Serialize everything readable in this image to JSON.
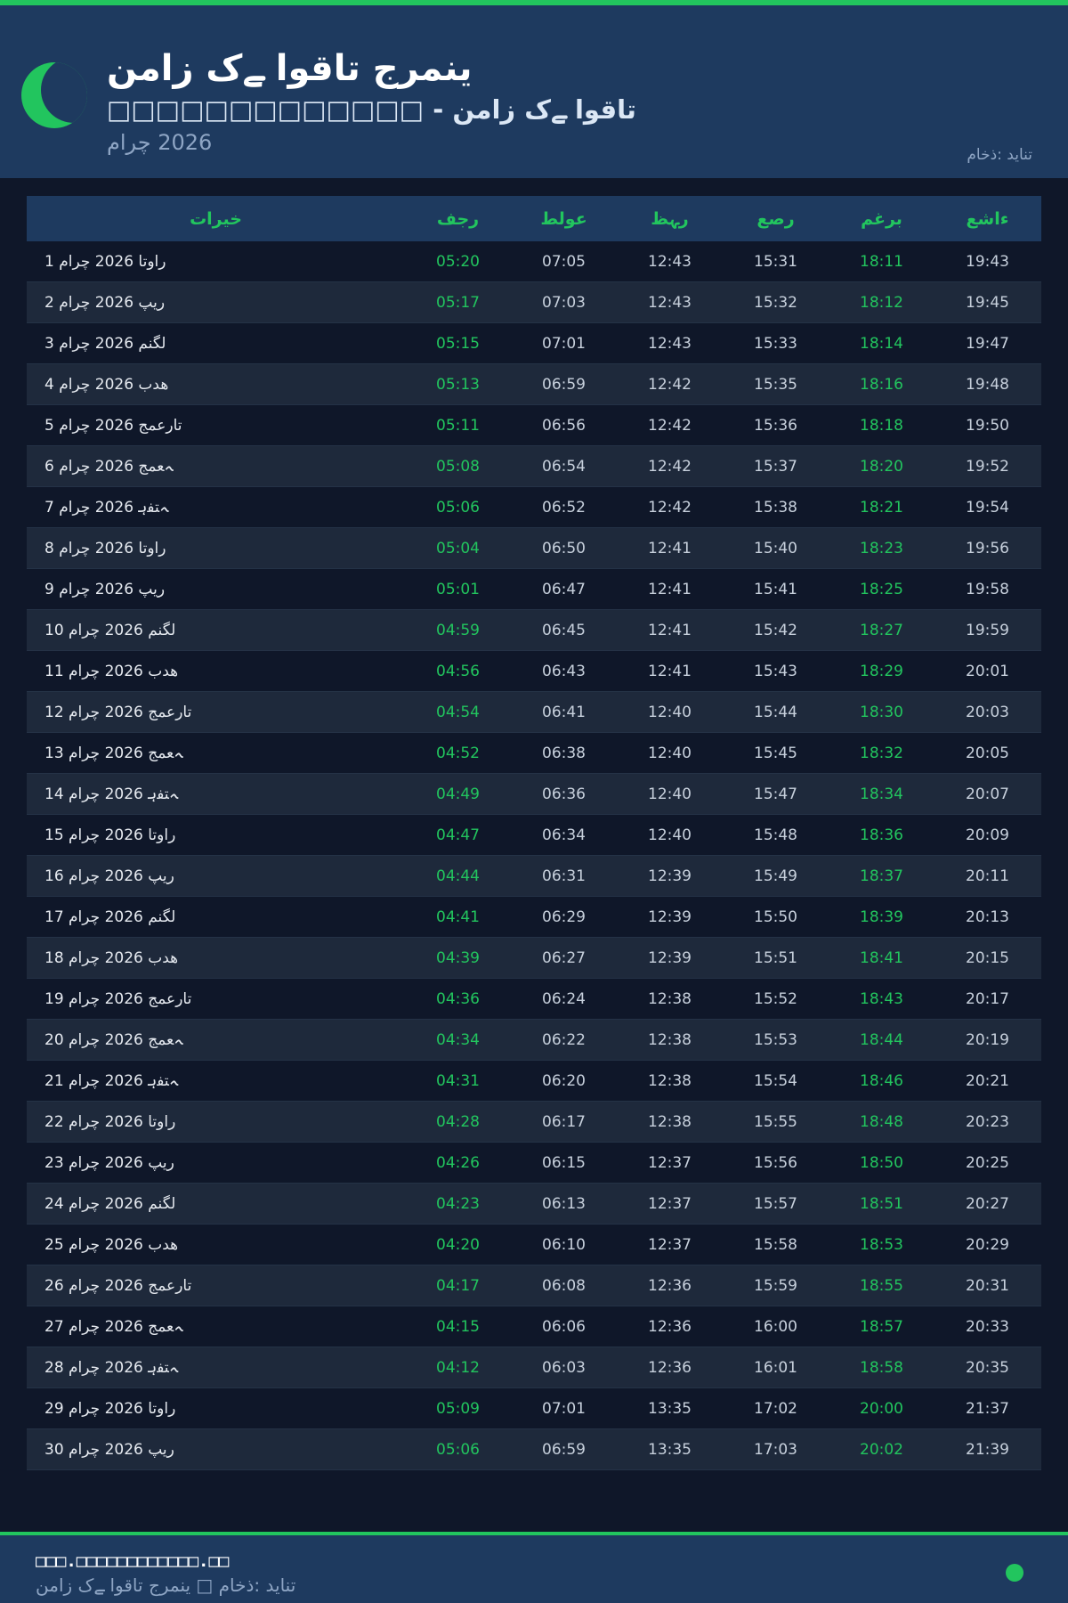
{
  "header": {
    "title": "نماز کے اوقات جرمنی",
    "subtitle": "□□□□□□□□□□□□□ - نماز کے اوقات",
    "month": "مارچ 2026",
    "source": "ماخذ: دیانت"
  },
  "colors": {
    "accent": "#22c55e",
    "header_bg": "#1e3a5f",
    "page_bg": "#0f1729"
  },
  "table": {
    "columns": [
      "تاریخ",
      "فجر",
      "طلوع",
      "ظہر",
      "عصر",
      "مغرب",
      "عشاء"
    ],
    "rows": [
      [
        "1 مارچ 2026 اتوار",
        "05:20",
        "07:05",
        "12:43",
        "15:31",
        "18:11",
        "19:43"
      ],
      [
        "2 مارچ 2026 پیر",
        "05:17",
        "07:03",
        "12:43",
        "15:32",
        "18:12",
        "19:45"
      ],
      [
        "3 مارچ 2026 منگل",
        "05:15",
        "07:01",
        "12:43",
        "15:33",
        "18:14",
        "19:47"
      ],
      [
        "4 مارچ 2026 بدھ",
        "05:13",
        "06:59",
        "12:42",
        "15:35",
        "18:16",
        "19:48"
      ],
      [
        "5 مارچ 2026 جمعرات",
        "05:11",
        "06:56",
        "12:42",
        "15:36",
        "18:18",
        "19:50"
      ],
      [
        "6 مارچ 2026 جمعہ",
        "05:08",
        "06:54",
        "12:42",
        "15:37",
        "18:20",
        "19:52"
      ],
      [
        "7 مارچ 2026 ہفتہ",
        "05:06",
        "06:52",
        "12:42",
        "15:38",
        "18:21",
        "19:54"
      ],
      [
        "8 مارچ 2026 اتوار",
        "05:04",
        "06:50",
        "12:41",
        "15:40",
        "18:23",
        "19:56"
      ],
      [
        "9 مارچ 2026 پیر",
        "05:01",
        "06:47",
        "12:41",
        "15:41",
        "18:25",
        "19:58"
      ],
      [
        "10 مارچ 2026 منگل",
        "04:59",
        "06:45",
        "12:41",
        "15:42",
        "18:27",
        "19:59"
      ],
      [
        "11 مارچ 2026 بدھ",
        "04:56",
        "06:43",
        "12:41",
        "15:43",
        "18:29",
        "20:01"
      ],
      [
        "12 مارچ 2026 جمعرات",
        "04:54",
        "06:41",
        "12:40",
        "15:44",
        "18:30",
        "20:03"
      ],
      [
        "13 مارچ 2026 جمعہ",
        "04:52",
        "06:38",
        "12:40",
        "15:45",
        "18:32",
        "20:05"
      ],
      [
        "14 مارچ 2026 ہفتہ",
        "04:49",
        "06:36",
        "12:40",
        "15:47",
        "18:34",
        "20:07"
      ],
      [
        "15 مارچ 2026 اتوار",
        "04:47",
        "06:34",
        "12:40",
        "15:48",
        "18:36",
        "20:09"
      ],
      [
        "16 مارچ 2026 پیر",
        "04:44",
        "06:31",
        "12:39",
        "15:49",
        "18:37",
        "20:11"
      ],
      [
        "17 مارچ 2026 منگل",
        "04:41",
        "06:29",
        "12:39",
        "15:50",
        "18:39",
        "20:13"
      ],
      [
        "18 مارچ 2026 بدھ",
        "04:39",
        "06:27",
        "12:39",
        "15:51",
        "18:41",
        "20:15"
      ],
      [
        "19 مارچ 2026 جمعرات",
        "04:36",
        "06:24",
        "12:38",
        "15:52",
        "18:43",
        "20:17"
      ],
      [
        "20 مارچ 2026 جمعہ",
        "04:34",
        "06:22",
        "12:38",
        "15:53",
        "18:44",
        "20:19"
      ],
      [
        "21 مارچ 2026 ہفتہ",
        "04:31",
        "06:20",
        "12:38",
        "15:54",
        "18:46",
        "20:21"
      ],
      [
        "22 مارچ 2026 اتوار",
        "04:28",
        "06:17",
        "12:38",
        "15:55",
        "18:48",
        "20:23"
      ],
      [
        "23 مارچ 2026 پیر",
        "04:26",
        "06:15",
        "12:37",
        "15:56",
        "18:50",
        "20:25"
      ],
      [
        "24 مارچ 2026 منگل",
        "04:23",
        "06:13",
        "12:37",
        "15:57",
        "18:51",
        "20:27"
      ],
      [
        "25 مارچ 2026 بدھ",
        "04:20",
        "06:10",
        "12:37",
        "15:58",
        "18:53",
        "20:29"
      ],
      [
        "26 مارچ 2026 جمعرات",
        "04:17",
        "06:08",
        "12:36",
        "15:59",
        "18:55",
        "20:31"
      ],
      [
        "27 مارچ 2026 جمعہ",
        "04:15",
        "06:06",
        "12:36",
        "16:00",
        "18:57",
        "20:33"
      ],
      [
        "28 مارچ 2026 ہفتہ",
        "04:12",
        "06:03",
        "12:36",
        "16:01",
        "18:58",
        "20:35"
      ],
      [
        "29 مارچ 2026 اتوار",
        "05:09",
        "07:01",
        "13:35",
        "17:02",
        "20:00",
        "21:37"
      ],
      [
        "30 مارچ 2026 پیر",
        "05:06",
        "06:59",
        "13:35",
        "17:03",
        "20:02",
        "21:39"
      ]
    ]
  },
  "footer": {
    "website": "□□□.□□□□□□□□□□□□.□□",
    "caption": "نماز کے اوقات جرمنی □ ماخذ: دیانت"
  }
}
